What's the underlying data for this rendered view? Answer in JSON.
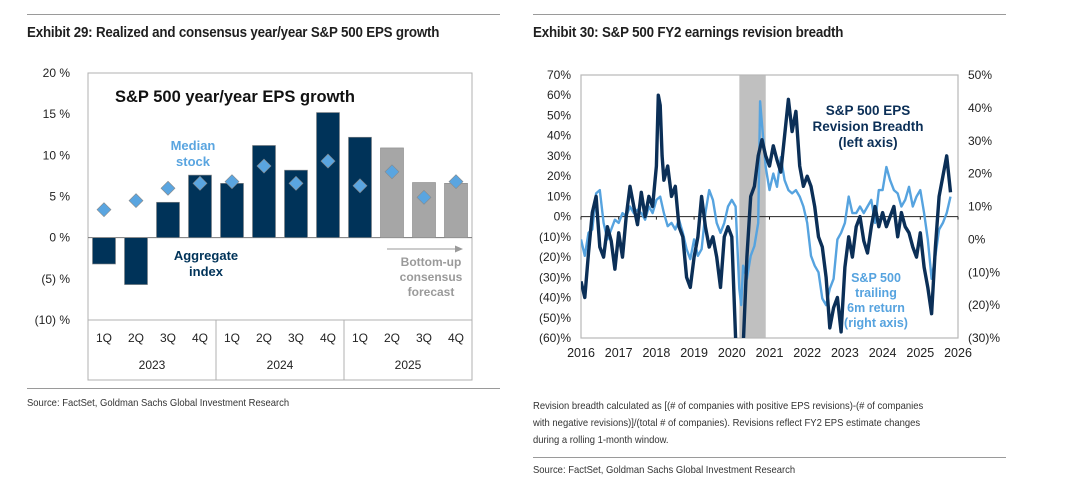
{
  "left": {
    "title": "Exhibit 29: Realized and consensus year/year S&P 500 EPS growth",
    "source": "Source: FactSet, Goldman Sachs Global Investment Research"
  },
  "right": {
    "title": "Exhibit 30: S&P 500 FY2 earnings revision breadth",
    "footnote_lines": [
      "Revision breadth calculated as [(# of companies with positive EPS revisions)-(# of companies",
      "with negative revisions)]/(total # of companies). Revisions reflect FY2 EPS estimate changes",
      "during a rolling 1-month window."
    ],
    "source": "Source: FactSet, Goldman Sachs Global Investment Research"
  },
  "chart_data": [
    {
      "type": "bar",
      "title": "S&P 500 year/year EPS growth",
      "xlabel": "",
      "ylabel": "",
      "ylim": [
        -10,
        20
      ],
      "yticks": [
        20,
        15,
        10,
        5,
        0,
        -5,
        -10
      ],
      "ytick_labels": [
        "20 %",
        "15 %",
        "10 %",
        "5 %",
        "0 %",
        "(5) %",
        "(10) %"
      ],
      "categories": [
        "1Q",
        "2Q",
        "3Q",
        "4Q",
        "1Q",
        "2Q",
        "3Q",
        "4Q",
        "1Q",
        "2Q",
        "3Q",
        "4Q"
      ],
      "groups": [
        {
          "label": "2023",
          "span": 4
        },
        {
          "label": "2024",
          "span": 4
        },
        {
          "label": "2025",
          "span": 4
        }
      ],
      "series": [
        {
          "name": "Aggregate index",
          "kind": "bar",
          "values": [
            -3.2,
            -5.7,
            4.3,
            7.6,
            6.6,
            11.2,
            8.2,
            15.2,
            12.2,
            10.9,
            6.7,
            6.6
          ],
          "is_forecast": [
            false,
            false,
            false,
            false,
            false,
            false,
            false,
            false,
            false,
            true,
            true,
            true
          ]
        },
        {
          "name": "Median stock",
          "kind": "diamond",
          "values": [
            3.4,
            4.5,
            6.0,
            6.6,
            6.8,
            8.7,
            6.6,
            9.3,
            6.3,
            8.0,
            4.9,
            6.8
          ]
        }
      ],
      "annotations": {
        "median": [
          "Median",
          "stock"
        ],
        "aggregate": [
          "Aggregate",
          "index"
        ],
        "forecast": [
          "Bottom-up",
          "consensus",
          "forecast"
        ]
      },
      "colors": {
        "bar": "#003359",
        "forecast_bar": "#a6a6a6",
        "diamond": "#5aa5e0",
        "median_text": "#5aa5e0",
        "forecast_text": "#9a9a9a",
        "aggregate_text": "#003359"
      },
      "grid": false
    },
    {
      "type": "line",
      "title": "",
      "xlabel": "",
      "ylabel_left": "",
      "ylabel_right": "",
      "xlim": [
        2016,
        2026
      ],
      "xticks": [
        "2016",
        "2017",
        "2018",
        "2019",
        "2020",
        "2021",
        "2022",
        "2023",
        "2024",
        "2025",
        "2026"
      ],
      "ylim_left": [
        -60,
        70
      ],
      "yticks_left": [
        "70%",
        "60%",
        "50%",
        "40%",
        "30%",
        "20%",
        "10%",
        "0%",
        "(10)%",
        "(20)%",
        "(30)%",
        "(40)%",
        "(50)%",
        "(60)%"
      ],
      "ylim_right": [
        -30,
        50
      ],
      "yticks_right": [
        "50%",
        "40%",
        "30%",
        "20%",
        "10%",
        "0%",
        "(10)%",
        "(20)%",
        "(30)%"
      ],
      "shaded_period": [
        2020.2,
        2020.9
      ],
      "series": [
        {
          "name": "S&P 500 EPS Revision Breadth (left axis)",
          "axis": "left",
          "color": "#0b2f57",
          "label_lines": [
            "S&P 500 EPS",
            "Revision Breadth",
            "(left axis)"
          ],
          "x": [
            2016.0,
            2016.1,
            2016.2,
            2016.3,
            2016.4,
            2016.5,
            2016.6,
            2016.7,
            2016.8,
            2016.9,
            2017.0,
            2017.1,
            2017.2,
            2017.3,
            2017.4,
            2017.5,
            2017.6,
            2017.7,
            2017.8,
            2017.9,
            2018.0,
            2018.05,
            2018.1,
            2018.15,
            2018.2,
            2018.3,
            2018.4,
            2018.5,
            2018.6,
            2018.7,
            2018.8,
            2018.9,
            2019.0,
            2019.1,
            2019.2,
            2019.3,
            2019.4,
            2019.5,
            2019.6,
            2019.7,
            2019.8,
            2019.9,
            2020.0,
            2020.1,
            2020.2,
            2020.3,
            2020.4,
            2020.5,
            2020.6,
            2020.7,
            2020.8,
            2020.9,
            2021.0,
            2021.1,
            2021.2,
            2021.3,
            2021.4,
            2021.5,
            2021.6,
            2021.7,
            2021.8,
            2021.9,
            2022.0,
            2022.1,
            2022.2,
            2022.3,
            2022.4,
            2022.5,
            2022.6,
            2022.7,
            2022.8,
            2022.9,
            2023.0,
            2023.1,
            2023.2,
            2023.3,
            2023.4,
            2023.5,
            2023.6,
            2023.7,
            2023.8,
            2023.9,
            2024.0,
            2024.1,
            2024.2,
            2024.3,
            2024.4,
            2024.5,
            2024.6,
            2024.7,
            2024.8,
            2024.9,
            2025.0,
            2025.1,
            2025.2,
            2025.3,
            2025.4,
            2025.5,
            2025.6,
            2025.7,
            2025.8
          ],
          "values": [
            -32,
            -40,
            -18,
            2,
            10,
            -15,
            -20,
            -5,
            -12,
            -26,
            -8,
            -20,
            0,
            15,
            5,
            -4,
            12,
            0,
            10,
            5,
            25,
            60,
            55,
            30,
            18,
            25,
            10,
            15,
            -5,
            -10,
            -30,
            -35,
            -20,
            -10,
            10,
            -5,
            -15,
            -10,
            -20,
            -35,
            -10,
            -5,
            -10,
            -60,
            -75,
            -65,
            -20,
            10,
            15,
            30,
            38,
            30,
            25,
            35,
            28,
            22,
            40,
            58,
            42,
            52,
            25,
            15,
            20,
            15,
            5,
            -10,
            -15,
            -30,
            -55,
            -45,
            -40,
            -57,
            -25,
            -10,
            -20,
            -5,
            0,
            -12,
            -18,
            -5,
            5,
            -5,
            2,
            -5,
            0,
            5,
            -10,
            2,
            -5,
            -8,
            -15,
            -20,
            -8,
            -25,
            -35,
            -48,
            -15,
            10,
            20,
            30,
            12
          ]
        },
        {
          "name": "S&P 500 trailing 6m return (right axis)",
          "axis": "right",
          "color": "#56a3df",
          "label_lines": [
            "S&P 500",
            "trailing",
            "6m return",
            "(right axis)"
          ],
          "x": [
            2016.0,
            2016.1,
            2016.2,
            2016.3,
            2016.4,
            2016.5,
            2016.6,
            2016.7,
            2016.8,
            2016.9,
            2017.0,
            2017.1,
            2017.2,
            2017.3,
            2017.4,
            2017.5,
            2017.6,
            2017.7,
            2017.8,
            2017.9,
            2018.0,
            2018.1,
            2018.2,
            2018.3,
            2018.4,
            2018.5,
            2018.6,
            2018.7,
            2018.8,
            2018.9,
            2019.0,
            2019.1,
            2019.2,
            2019.3,
            2019.4,
            2019.5,
            2019.6,
            2019.7,
            2019.8,
            2019.9,
            2020.0,
            2020.1,
            2020.2,
            2020.25,
            2020.3,
            2020.4,
            2020.5,
            2020.6,
            2020.7,
            2020.75,
            2020.8,
            2020.9,
            2021.0,
            2021.1,
            2021.2,
            2021.3,
            2021.4,
            2021.5,
            2021.6,
            2021.7,
            2021.8,
            2021.9,
            2022.0,
            2022.1,
            2022.2,
            2022.3,
            2022.4,
            2022.5,
            2022.6,
            2022.7,
            2022.8,
            2022.9,
            2023.0,
            2023.1,
            2023.2,
            2023.3,
            2023.4,
            2023.5,
            2023.6,
            2023.7,
            2023.8,
            2023.9,
            2024.0,
            2024.1,
            2024.2,
            2024.3,
            2024.4,
            2024.5,
            2024.6,
            2024.7,
            2024.8,
            2024.9,
            2025.0,
            2025.1,
            2025.2,
            2025.3,
            2025.4,
            2025.5,
            2025.6,
            2025.7,
            2025.8
          ],
          "values": [
            0,
            -5,
            2,
            3,
            14,
            15,
            5,
            0,
            3,
            6,
            5,
            8,
            7,
            10,
            8,
            9,
            8,
            6,
            10,
            8,
            12,
            13,
            8,
            4,
            5,
            3,
            6,
            2,
            -3,
            -6,
            0,
            -5,
            -3,
            8,
            15,
            12,
            5,
            2,
            5,
            10,
            12,
            10,
            -15,
            -20,
            -8,
            -12,
            -5,
            -2,
            5,
            42,
            35,
            22,
            15,
            20,
            16,
            25,
            18,
            15,
            14,
            15,
            13,
            10,
            5,
            -5,
            -8,
            -10,
            -18,
            -20,
            -15,
            -12,
            0,
            2,
            5,
            13,
            8,
            8,
            10,
            8,
            10,
            12,
            5,
            15,
            15,
            22,
            18,
            15,
            14,
            10,
            12,
            16,
            10,
            13,
            15,
            8,
            0,
            -12,
            -5,
            3,
            5,
            8,
            13
          ]
        }
      ],
      "grid": false
    }
  ]
}
